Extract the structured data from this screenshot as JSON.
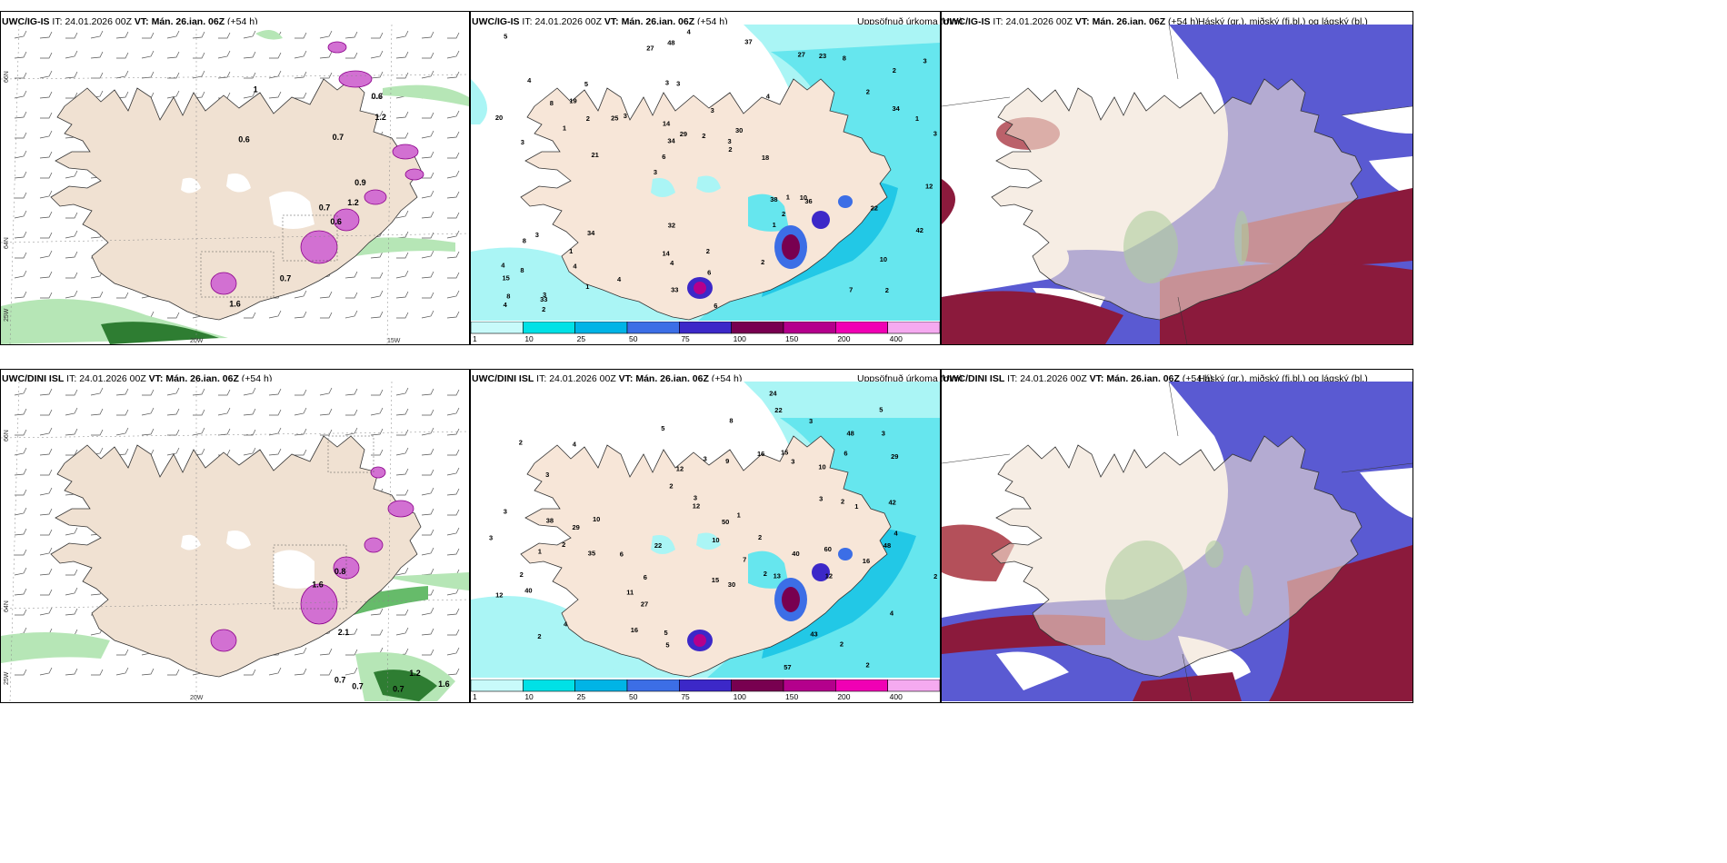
{
  "panels": [
    {
      "id": "p1",
      "model": "UWC/IG-IS",
      "it_label": "IT:",
      "it": "24.01.2026 00Z",
      "vt_label": "VT:",
      "vt": "Mán. 26.jan. 06Z",
      "lead": "(+54 h)",
      "right_title": ""
    },
    {
      "id": "p2",
      "model": "UWC/IG-IS",
      "it_label": "IT:",
      "it": "24.01.2026 00Z",
      "vt_label": "VT:",
      "vt": "Mán. 26.jan. 06Z",
      "lead": "(+54 h)",
      "right_title": "Uppsöfnuð úrkoma (mm)"
    },
    {
      "id": "p3",
      "model": "UWC/IG-IS",
      "it_label": "IT:",
      "it": "24.01.2026 00Z",
      "vt_label": "VT:",
      "vt": "Mán. 26.jan. 06Z",
      "lead": "(+54 h)",
      "right_title": "Háský (gr.), miðský (fj.bl.) og lágský (bl.)"
    },
    {
      "id": "p4",
      "model": "UWC/DINI ISL",
      "it_label": "IT:",
      "it": "24.01.2026 00Z",
      "vt_label": "VT:",
      "vt": "Mán. 26.jan. 06Z",
      "lead": "(+54 h)",
      "right_title": ""
    },
    {
      "id": "p5",
      "model": "UWC/DINI ISL",
      "it_label": "IT:",
      "it": "24.01.2026 00Z",
      "vt_label": "VT:",
      "vt": "Mán. 26.jan. 06Z",
      "lead": "(+54 h)",
      "right_title": "Uppsöfnuð úrkoma (mm)"
    },
    {
      "id": "p6",
      "model": "UWC/DINI ISL",
      "it_label": "IT:",
      "it": "24.01.2026 00Z",
      "vt_label": "VT:",
      "vt": "Mán. 26.jan. 06Z",
      "lead": "(+54 h)",
      "right_title": "Háský (gr.), miðský (fj.bl.) og lágský (bl.)"
    }
  ],
  "geo_labels": {
    "top": {
      "lat66": "66N",
      "lat64": "64N",
      "lon25": "25W",
      "lon20": "20W",
      "lon15": "15W"
    },
    "bottom": {
      "lat66": "66N",
      "lat64": "64N",
      "lon25": "25W",
      "lon20": "20W"
    }
  },
  "colorbar": {
    "ticks": [
      "1",
      "10",
      "25",
      "50",
      "75",
      "100",
      "150",
      "200",
      "400"
    ],
    "colors": [
      "#c8fafa",
      "#00e1e6",
      "#00b4e6",
      "#3c6ee6",
      "#3c28c8",
      "#780050",
      "#b4008c",
      "#f000b4",
      "#f5aaf0"
    ]
  },
  "wind_values": {
    "top": [
      "0.6",
      "0.6",
      "0.7",
      "1.6",
      "0.9",
      "0.7",
      "0.6",
      "0.7",
      "1.2",
      "1.2",
      "1"
    ],
    "bottom": [
      "0.7",
      "0.7",
      "0.7",
      "1.2",
      "0.8",
      "1.6",
      "2.1",
      "1.6"
    ]
  },
  "precip_values": {
    "top": [
      "2",
      "3",
      "2",
      "3",
      "4",
      "3",
      "3",
      "3",
      "3",
      "3",
      "15",
      "4",
      "3",
      "30",
      "36",
      "4",
      "48",
      "3",
      "38",
      "34",
      "6",
      "14",
      "34",
      "5",
      "27",
      "34",
      "7",
      "10",
      "10",
      "6",
      "25",
      "1",
      "1",
      "1",
      "1",
      "3",
      "8",
      "4",
      "2",
      "8",
      "2",
      "3",
      "2",
      "2",
      "1",
      "2",
      "4",
      "2",
      "8",
      "4",
      "21",
      "20",
      "19",
      "23",
      "33",
      "37",
      "27",
      "29",
      "42",
      "32",
      "4",
      "1",
      "2",
      "4",
      "5",
      "8",
      "12",
      "14",
      "6",
      "2",
      "8",
      "18",
      "22",
      "33"
    ],
    "bottom": [
      "2",
      "2",
      "2",
      "2",
      "4",
      "3",
      "4",
      "6",
      "10",
      "3",
      "3",
      "2",
      "27",
      "5",
      "2",
      "40",
      "60",
      "50",
      "3",
      "2",
      "5",
      "9",
      "2",
      "2",
      "4",
      "38",
      "35",
      "10",
      "12",
      "3",
      "13",
      "1",
      "11",
      "15",
      "12",
      "16",
      "48",
      "43",
      "48",
      "57",
      "6",
      "30",
      "16",
      "24",
      "22",
      "29",
      "29",
      "22",
      "16",
      "15",
      "40",
      "42",
      "12",
      "1",
      "2",
      "3",
      "5",
      "3",
      "7",
      "3",
      "5",
      "6",
      "4",
      "8",
      "12",
      "2",
      "10",
      "1",
      "3"
    ]
  }
}
